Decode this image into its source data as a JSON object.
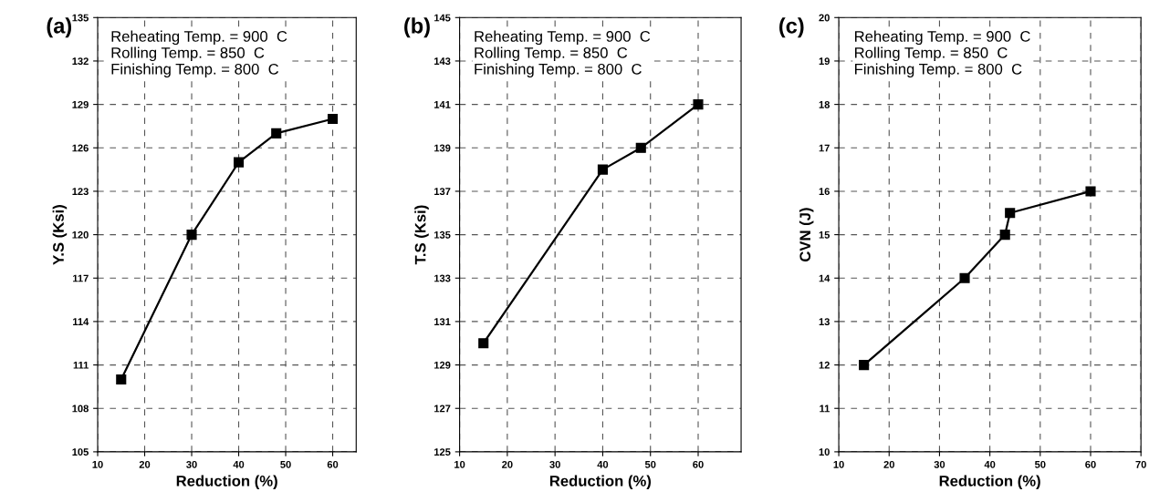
{
  "chart_data": [
    {
      "type": "line",
      "title": "(a)",
      "xlabel": "Reduction (%)",
      "ylabel": "Y.S (Ksi)",
      "x": [
        15,
        30,
        40,
        48,
        60
      ],
      "series": [
        {
          "color": "#000000",
          "values": [
            110,
            120,
            125,
            127,
            128
          ]
        }
      ],
      "xlim": [
        10,
        65
      ],
      "xticks": [
        10,
        20,
        30,
        40,
        50,
        60
      ],
      "ylim": [
        105,
        135
      ],
      "yticks": [
        105,
        108,
        111,
        114,
        117,
        120,
        123,
        126,
        129,
        132,
        135
      ],
      "grid": true,
      "marker": "square",
      "line_style": "solid",
      "annotations": [
        "Reheating Temp. = 900  C\nRolling Temp. = 850  C\nFinishing Temp. = 800  C"
      ]
    },
    {
      "type": "line",
      "title": "(b)",
      "xlabel": "Reduction (%)",
      "ylabel": "T.S (Ksi)",
      "x": [
        15,
        40,
        48,
        60
      ],
      "series": [
        {
          "color": "#000000",
          "values": [
            130,
            138,
            139,
            141
          ]
        }
      ],
      "xlim": [
        10,
        69
      ],
      "xticks": [
        10,
        20,
        30,
        40,
        50,
        60
      ],
      "ylim": [
        125,
        145
      ],
      "yticks": [
        125,
        127,
        129,
        131,
        133,
        135,
        137,
        139,
        141,
        143,
        145
      ],
      "grid": true,
      "marker": "square",
      "line_style": "solid",
      "annotations": [
        "Reheating Temp. = 900  C\nRolling Temp. = 850  C\nFinishing Temp. = 800  C"
      ]
    },
    {
      "type": "line",
      "title": "(c)",
      "xlabel": "Reduction (%)",
      "ylabel": "CVN (J)",
      "x": [
        15,
        35,
        43,
        44,
        60
      ],
      "series": [
        {
          "color": "#000000",
          "values": [
            12,
            14,
            15,
            15.5,
            16
          ]
        }
      ],
      "xlim": [
        10,
        70
      ],
      "xticks": [
        10,
        20,
        30,
        40,
        50,
        60,
        70
      ],
      "ylim": [
        10,
        20
      ],
      "yticks": [
        10,
        11,
        12,
        13,
        14,
        15,
        16,
        17,
        18,
        19,
        20
      ],
      "grid": true,
      "marker": "square",
      "line_style": "solid",
      "annotations": [
        "Reheating Temp. = 900  C\nRolling Temp. = 850  C\nFinishing Temp. = 800  C"
      ]
    }
  ]
}
